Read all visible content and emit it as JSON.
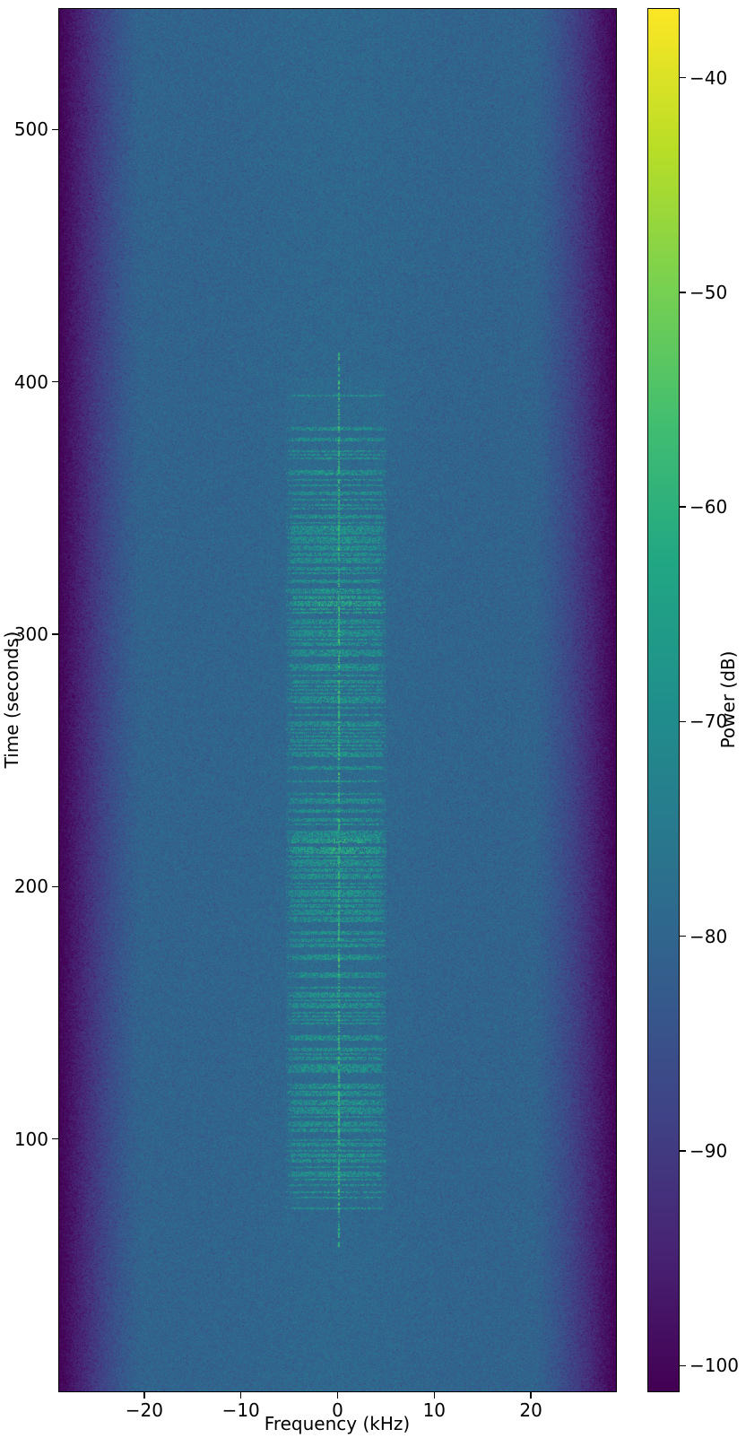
{
  "figure": {
    "background": "#ffffff",
    "frame_color": "#000000",
    "text_color": "#000000"
  },
  "chart_data": {
    "type": "heatmap",
    "subtype": "spectrogram",
    "title": "",
    "xlabel": "Frequency (kHz)",
    "ylabel": "Time (seconds)",
    "colorbar_label": "Power (dB)",
    "colormap": "viridis",
    "xlim": [
      -28.8,
      28.8
    ],
    "ylim": [
      0,
      547.8
    ],
    "clim": [
      -101.2,
      -36.8
    ],
    "x_ticks": [
      -20,
      -10,
      0,
      10,
      20
    ],
    "y_ticks": [
      100,
      200,
      300,
      400,
      500
    ],
    "colorbar_ticks": [
      -40,
      -50,
      -60,
      -70,
      -80,
      -90,
      -100
    ],
    "grid": false,
    "legend": null,
    "background_noise": {
      "center_floor_db": -80,
      "edge_floor_db": -101,
      "edge_rolloff_start_khz": 20.2,
      "noise_spread_db": 4
    },
    "signal": {
      "carrier_freq_khz": 0,
      "carrier_time_range_s": [
        57,
        412
      ],
      "carrier_peak_db": -55,
      "burst_band_khz": [
        -5.3,
        5.1
      ],
      "burst_time_range_s": [
        72,
        402
      ],
      "burst_stripe_db": -65,
      "dense_patches_time_s": [
        [
          205,
          222
        ],
        [
          308,
          322
        ]
      ],
      "sparse_ranges_time_s": [
        [
          222,
          246
        ],
        [
          356,
          402
        ]
      ],
      "description": "Dashed horizontal burst stripes around 0 kHz with a dotted carrier line at center"
    }
  }
}
